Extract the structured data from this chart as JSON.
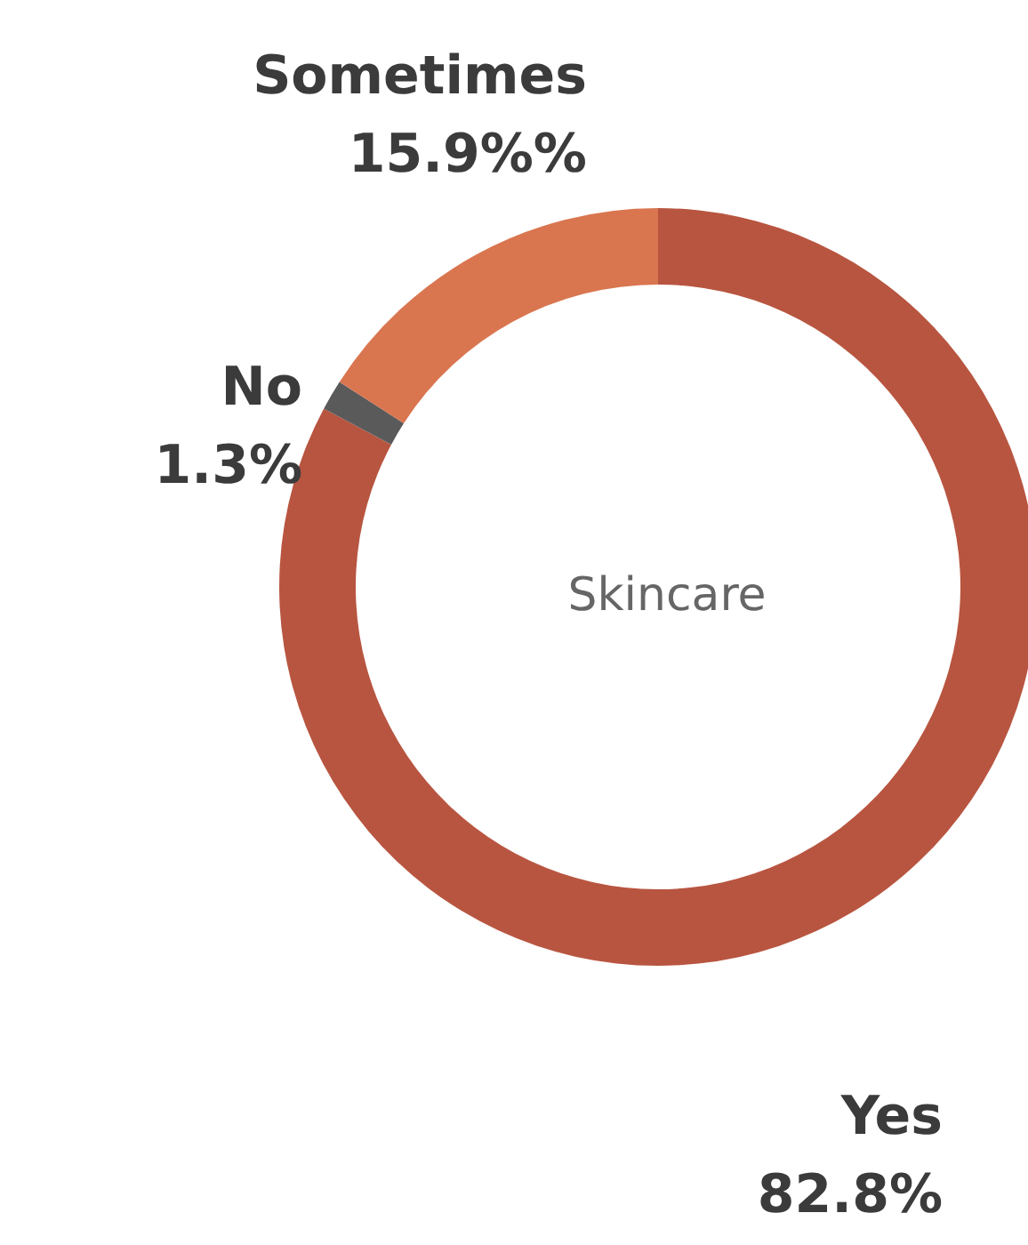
{
  "chart_data": {
    "type": "donut",
    "title": "Skincare",
    "categories": [
      "Yes",
      "No",
      "Sometimes"
    ],
    "values": [
      82.8,
      1.3,
      15.9
    ],
    "colors": [
      "#b85540",
      "#5a5a5a",
      "#d97650"
    ],
    "value_labels": [
      "82.8%",
      "1.3%",
      "15.9%%"
    ],
    "legend": false
  }
}
